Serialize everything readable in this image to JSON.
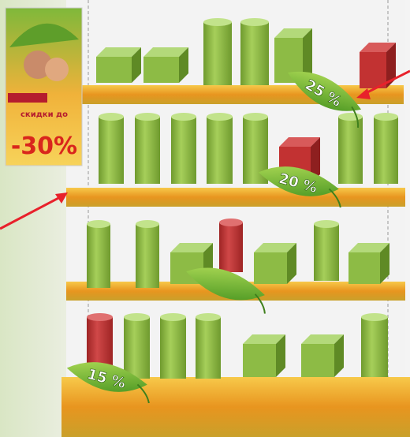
{
  "poster": {
    "caption": "скидки до",
    "discount": "-30%"
  },
  "leaves": [
    {
      "label": "25 %"
    },
    {
      "label": "20 %"
    },
    {
      "label": "15 %"
    }
  ]
}
